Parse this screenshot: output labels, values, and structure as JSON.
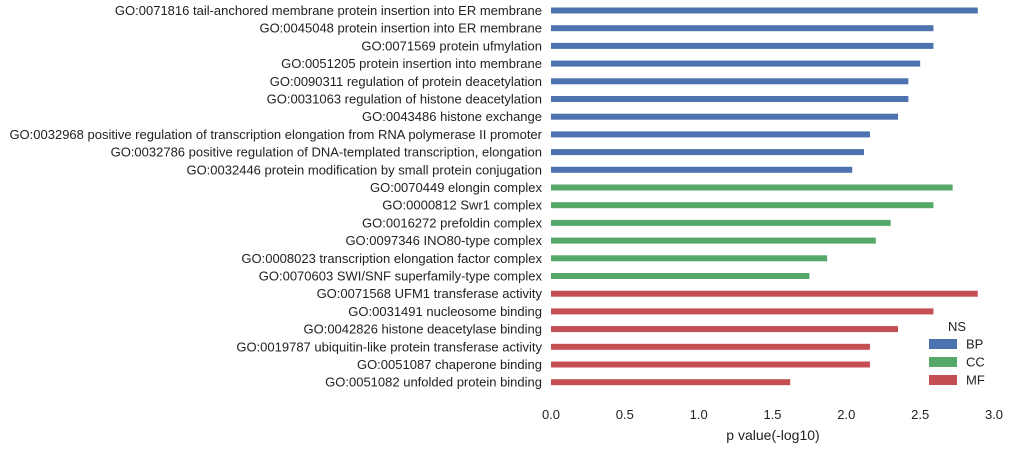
{
  "chart_data": {
    "type": "bar",
    "orientation": "horizontal",
    "xlabel": "p value(-log10)",
    "ylabel": "",
    "xlim": [
      0,
      3.0
    ],
    "xticks": [
      "0.0",
      "0.5",
      "1.0",
      "1.5",
      "2.0",
      "2.5",
      "3.0"
    ],
    "grid": false,
    "legend": {
      "title": "NS",
      "placement": "lower-right",
      "entries": [
        {
          "name": "BP",
          "color": "#4c72b0"
        },
        {
          "name": "CC",
          "color": "#55a868"
        },
        {
          "name": "MF",
          "color": "#c44e52"
        }
      ]
    },
    "bars": [
      {
        "label": "GO:0071816 tail-anchored membrane protein insertion into ER membrane",
        "value": 2.89,
        "group": "BP"
      },
      {
        "label": "GO:0045048 protein insertion into ER membrane",
        "value": 2.59,
        "group": "BP"
      },
      {
        "label": "GO:0071569 protein ufmylation",
        "value": 2.59,
        "group": "BP"
      },
      {
        "label": "GO:0051205 protein insertion into membrane",
        "value": 2.5,
        "group": "BP"
      },
      {
        "label": "GO:0090311 regulation of protein deacetylation",
        "value": 2.42,
        "group": "BP"
      },
      {
        "label": "GO:0031063 regulation of histone deacetylation",
        "value": 2.42,
        "group": "BP"
      },
      {
        "label": "GO:0043486 histone exchange",
        "value": 2.35,
        "group": "BP"
      },
      {
        "label": "GO:0032968 positive regulation of transcription elongation from RNA polymerase II promoter",
        "value": 2.16,
        "group": "BP"
      },
      {
        "label": "GO:0032786 positive regulation of DNA-templated transcription, elongation",
        "value": 2.12,
        "group": "BP"
      },
      {
        "label": "GO:0032446 protein modification by small protein conjugation",
        "value": 2.04,
        "group": "BP"
      },
      {
        "label": "GO:0070449 elongin complex",
        "value": 2.72,
        "group": "CC"
      },
      {
        "label": "GO:0000812 Swr1 complex",
        "value": 2.59,
        "group": "CC"
      },
      {
        "label": "GO:0016272 prefoldin complex",
        "value": 2.3,
        "group": "CC"
      },
      {
        "label": "GO:0097346 INO80-type complex",
        "value": 2.2,
        "group": "CC"
      },
      {
        "label": "GO:0008023 transcription elongation factor complex",
        "value": 1.87,
        "group": "CC"
      },
      {
        "label": "GO:0070603 SWI/SNF superfamily-type complex",
        "value": 1.75,
        "group": "CC"
      },
      {
        "label": "GO:0071568 UFM1 transferase activity",
        "value": 2.89,
        "group": "MF"
      },
      {
        "label": "GO:0031491 nucleosome binding",
        "value": 2.59,
        "group": "MF"
      },
      {
        "label": "GO:0042826 histone deacetylase binding",
        "value": 2.35,
        "group": "MF"
      },
      {
        "label": "GO:0019787 ubiquitin-like protein transferase activity",
        "value": 2.16,
        "group": "MF"
      },
      {
        "label": "GO:0051087 chaperone binding",
        "value": 2.16,
        "group": "MF"
      },
      {
        "label": "GO:0051082 unfolded protein binding",
        "value": 1.62,
        "group": "MF"
      }
    ]
  }
}
